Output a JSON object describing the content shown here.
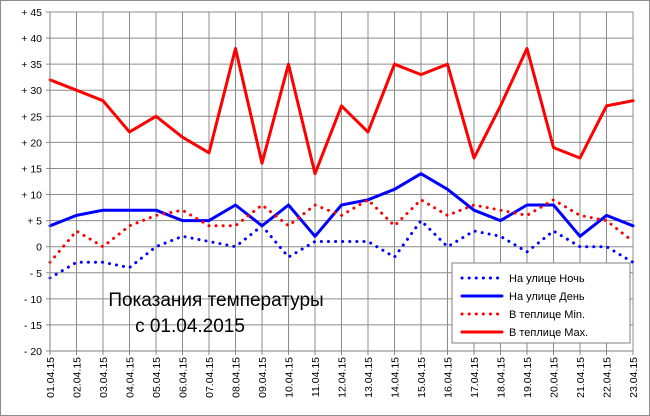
{
  "chart_data": {
    "type": "line",
    "title": "",
    "xlabel": "",
    "ylabel": "",
    "ylim": [
      -20,
      45
    ],
    "y_step": 5,
    "y_tick_labels": [
      "- 20",
      "- 15",
      "- 10",
      "- 5",
      "0",
      "+ 5",
      "+ 10",
      "+ 15",
      "+ 20",
      "+ 25",
      "+ 30",
      "+ 35",
      "+ 40",
      "+ 45"
    ],
    "grid": "horizontal and vertical",
    "legend_position": "bottom-right",
    "categories": [
      "01.04.15",
      "02.04.15",
      "03.04.15",
      "04.04.15",
      "05.04.15",
      "06.04.15",
      "07.04.15",
      "08.04.15",
      "09.04.15",
      "10.04.15",
      "11.04.15",
      "12.04.15",
      "13.04.15",
      "14.04.15",
      "15.04.15",
      "16.04.15",
      "17.04.15",
      "18.04.15",
      "19.04.15",
      "20.04.15",
      "21.04.15",
      "22.04.15",
      "23.04.15"
    ],
    "annotation": [
      "Показания температуры",
      "с 01.04.2015"
    ],
    "series": [
      {
        "name": "На улице Ночь",
        "color": "#0000ff",
        "style": "dotted",
        "values": [
          -6,
          -3,
          -3,
          -4,
          0,
          2,
          1,
          0,
          4,
          -2,
          1,
          1,
          1,
          -2,
          5,
          0,
          3,
          2,
          -1,
          3,
          0,
          0,
          -3
        ]
      },
      {
        "name": "На улице День",
        "color": "#0000ff",
        "style": "solid",
        "values": [
          4,
          6,
          7,
          7,
          7,
          5,
          5,
          8,
          4,
          8,
          2,
          8,
          9,
          11,
          14,
          11,
          7,
          5,
          8,
          8,
          2,
          6,
          4
        ]
      },
      {
        "name": "В теплице Min.",
        "color": "#ff0000",
        "style": "dotted",
        "values": [
          -3,
          3,
          0,
          4,
          6,
          7,
          4,
          4,
          8,
          4,
          8,
          6,
          9,
          4,
          9,
          6,
          8,
          7,
          6,
          9,
          6,
          5,
          1
        ]
      },
      {
        "name": "В теплице Max.",
        "color": "#ff0000",
        "style": "solid",
        "values": [
          32,
          30,
          28,
          22,
          25,
          21,
          18,
          38,
          16,
          35,
          14,
          27,
          22,
          35,
          33,
          35,
          17,
          27,
          38,
          19,
          17,
          27,
          28
        ]
      }
    ]
  }
}
